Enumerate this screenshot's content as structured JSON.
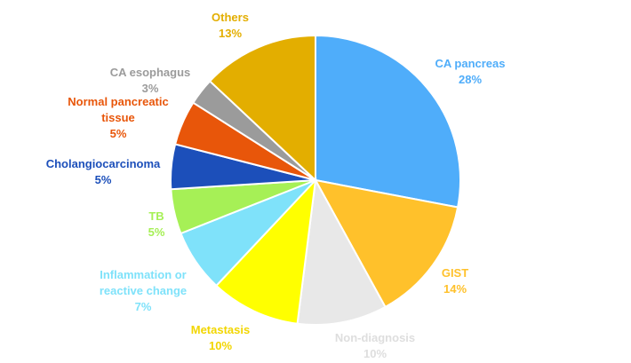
{
  "chart_data": {
    "type": "pie",
    "start_angle_deg": 0,
    "direction": "clockwise",
    "slices": [
      {
        "name": "CA pancreas",
        "value": 28,
        "label": "28%",
        "color": "#4FADFA",
        "label_color": "#4FADFA"
      },
      {
        "name": "GIST",
        "value": 14,
        "label": "14%",
        "color": "#FFC12B",
        "label_color": "#FFC12B"
      },
      {
        "name": "Non-diagnosis",
        "value": 10,
        "label": "10%",
        "color": "#E8E8E8",
        "label_color": "#DEDEDE"
      },
      {
        "name": "Metastasis",
        "value": 10,
        "label": "10%",
        "color": "#FFFF00",
        "label_color": "#F2D600"
      },
      {
        "name": "Inflammation or reactive change",
        "value": 7,
        "label": "7%",
        "color": "#7FE2FA",
        "label_color": "#7FE2FA"
      },
      {
        "name": "TB",
        "value": 5,
        "label": "5%",
        "color": "#A6F056",
        "label_color": "#A6F056"
      },
      {
        "name": "Cholangiocarcinoma",
        "value": 5,
        "label": "5%",
        "color": "#1C4FBA",
        "label_color": "#1C4FBA"
      },
      {
        "name": "Normal pancreatic tissue",
        "value": 5,
        "label": "5%",
        "color": "#E8560A",
        "label_color": "#E8560A"
      },
      {
        "name": "CA esophagus",
        "value": 3,
        "label": "3%",
        "color": "#9B9B9B",
        "label_color": "#9B9B9B"
      },
      {
        "name": "Others",
        "value": 13,
        "label": "13%",
        "color": "#E3AE00",
        "label_color": "#E3AE00"
      }
    ]
  }
}
